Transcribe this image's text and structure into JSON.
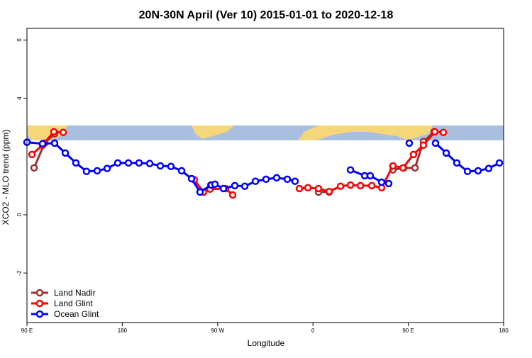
{
  "chart_data": {
    "type": "line",
    "title": "20N-30N April (Ver 10)   2015-01-01 to 2020-12-18",
    "x_label": "Longitude",
    "y_label": "XCO2 - MLO trend (ppm)",
    "xlim": [
      90,
      540
    ],
    "ylim": [
      -3.7,
      6.4
    ],
    "xticks": [
      {
        "value": 90,
        "label": "90 E"
      },
      180,
      {
        "value": 270,
        "label": "90 W"
      },
      {
        "value": 360,
        "label": "0"
      },
      {
        "value": 450,
        "label": "90 E"
      },
      {
        "value": 540,
        "label": "180"
      }
    ],
    "yticks": [
      -2,
      0,
      4,
      6
    ],
    "legend": "bottom-left",
    "series": [
      {
        "name": "Land Nadir",
        "color": "#a03030",
        "x": [
          96.7,
          106.7,
          116.1,
          null,
          256.7,
          263.4,
          null,
          365.2,
          375.3,
          null,
          435.5,
          445.6,
          456.3,
          464.3,
          474.4
        ],
        "values": [
          1.61,
          2.46,
          2.78,
          null,
          0.78,
          1.02,
          null,
          0.78,
          0.78,
          null,
          1.54,
          1.61,
          1.61,
          2.51,
          2.85
        ]
      },
      {
        "name": "Land Glint",
        "color": "#ff0000",
        "x": [
          94.7,
          104.7,
          115.4,
          124.2,
          null,
          248,
          256.7,
          262.8,
          277.5,
          284.2,
          null,
          347.2,
          355.2,
          365.2,
          375.3,
          386,
          395.4,
          404.8,
          415.5,
          424.8,
          435.5,
          444.9,
          454.9,
          464.3,
          475,
          483.1
        ],
        "values": [
          2.07,
          2.39,
          2.85,
          2.83,
          null,
          1.2,
          0.78,
          0.88,
          0.9,
          0.68,
          null,
          0.9,
          0.93,
          0.9,
          0.8,
          0.98,
          1.02,
          1.0,
          1.0,
          0.93,
          1.68,
          1.61,
          2.07,
          2.39,
          2.85,
          2.83
        ]
      },
      {
        "name": "Ocean Glint",
        "color": "#0000ff",
        "x": [
          90,
          104.7,
          116.1,
          126.2,
          136.2,
          146.2,
          156.3,
          165.7,
          175.7,
          185.8,
          195.8,
          205.9,
          215.9,
          225.9,
          236,
          245.4,
          253.4,
          264.1,
          267.5,
          275.5,
          286.2,
          295.6,
          305.7,
          315.7,
          325.7,
          335.8,
          343.1,
          null,
          395.4,
          408.8,
          414.1,
          424.8,
          431.5,
          null,
          450.9,
          null,
          475.7,
          485.8,
          495.8,
          505.9,
          515.9,
          525.9,
          536
        ],
        "values": [
          2.49,
          2.44,
          2.46,
          2.12,
          1.78,
          1.49,
          1.51,
          1.59,
          1.78,
          1.78,
          1.78,
          1.76,
          1.68,
          1.66,
          1.51,
          1.24,
          0.78,
          1.02,
          1.05,
          0.9,
          1.0,
          0.98,
          1.15,
          1.22,
          1.27,
          1.22,
          1.15,
          null,
          1.54,
          1.34,
          1.34,
          1.12,
          1.07,
          null,
          2.46,
          null,
          2.46,
          2.12,
          1.78,
          1.49,
          1.51,
          1.59,
          1.78
        ]
      }
    ]
  }
}
